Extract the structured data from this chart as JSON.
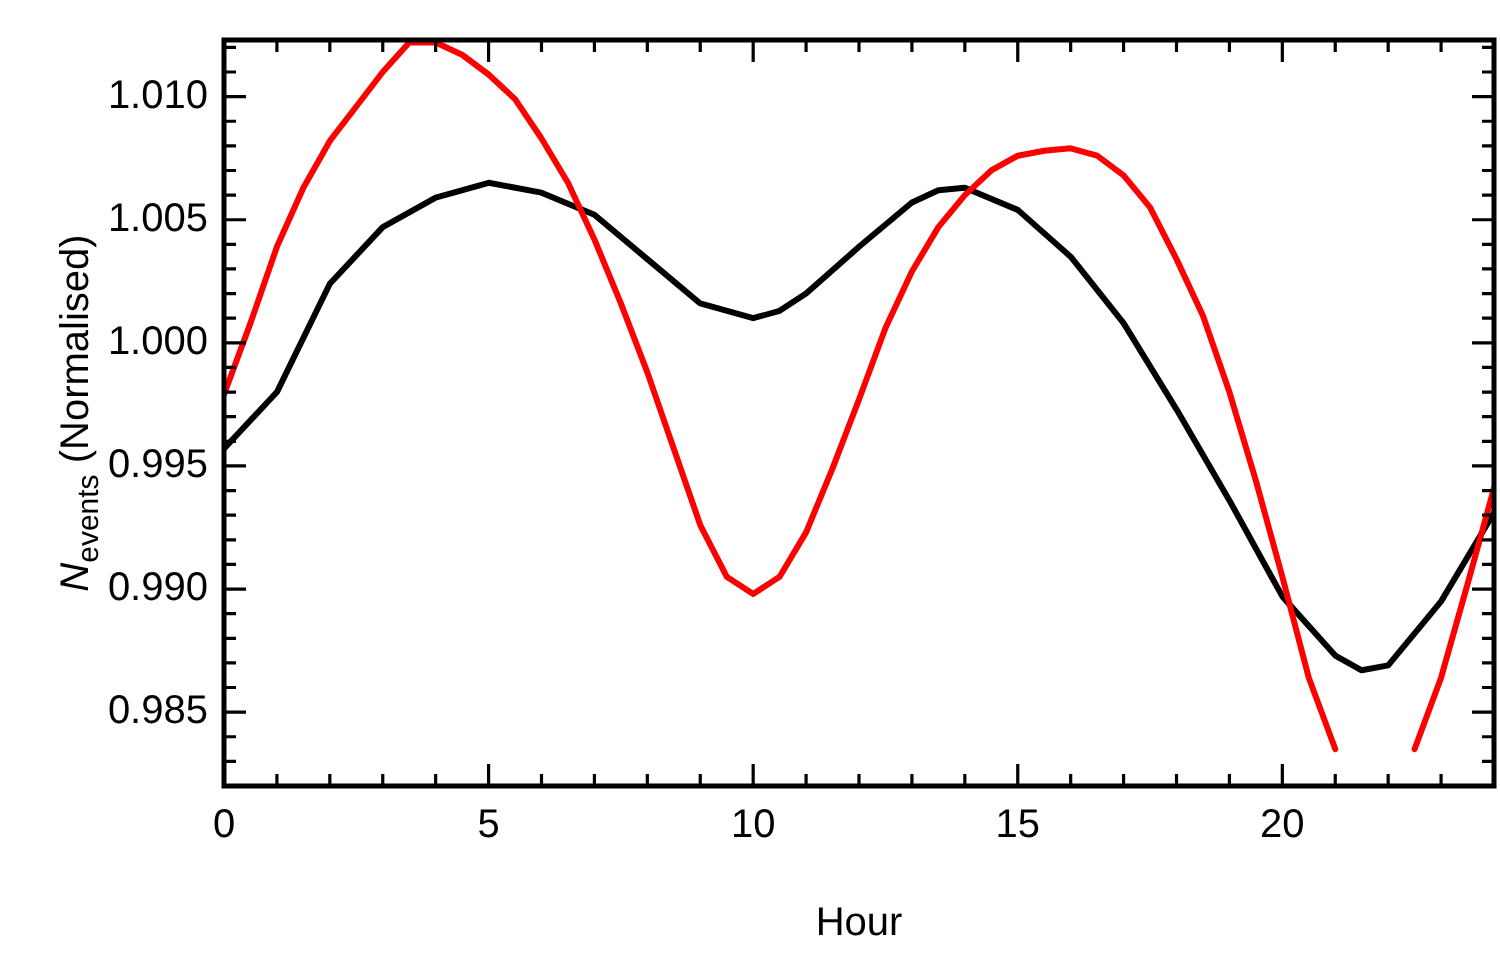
{
  "chart_data": {
    "type": "line",
    "xlabel": "Hour",
    "ylabel": "N$_{events}$ (Normalised)",
    "marker": "none",
    "line_style": "solid",
    "xlim": [
      0,
      24
    ],
    "xticks": [
      0,
      {
        "value": 1,
        "label": null
      },
      {
        "value": 2,
        "label": null
      },
      {
        "value": 3,
        "label": null
      },
      {
        "value": 4,
        "label": null
      },
      5,
      {
        "value": 6,
        "label": null
      },
      {
        "value": 7,
        "label": null
      },
      {
        "value": 8,
        "label": null
      },
      {
        "value": 9,
        "label": null
      },
      10,
      {
        "value": 11,
        "label": null
      },
      {
        "value": 12,
        "label": null
      },
      {
        "value": 13,
        "label": null
      },
      {
        "value": 14,
        "label": null
      },
      15,
      {
        "value": 16,
        "label": null
      },
      {
        "value": 17,
        "label": null
      },
      {
        "value": 18,
        "label": null
      },
      {
        "value": 19,
        "label": null
      },
      20,
      {
        "value": 21,
        "label": null
      },
      {
        "value": 22,
        "label": null
      },
      {
        "value": 23,
        "label": null
      }
    ],
    "ylim": [
      0.982,
      1.0123
    ],
    "yticks": [
      {
        "value": 0.983,
        "label": null
      },
      {
        "value": 0.984,
        "label": null
      },
      0.985,
      {
        "value": 0.986,
        "label": null
      },
      {
        "value": 0.987,
        "label": null
      },
      {
        "value": 0.988,
        "label": null
      },
      {
        "value": 0.989,
        "label": null
      },
      {
        "value": 0.99,
        "label": "0.990"
      },
      {
        "value": 0.991,
        "label": null
      },
      {
        "value": 0.992,
        "label": null
      },
      {
        "value": 0.993,
        "label": null
      },
      {
        "value": 0.994,
        "label": null
      },
      0.995,
      {
        "value": 0.996,
        "label": null
      },
      {
        "value": 0.997,
        "label": null
      },
      {
        "value": 0.998,
        "label": null
      },
      {
        "value": 0.999,
        "label": null
      },
      {
        "value": 1,
        "label": "1.000"
      },
      {
        "value": 1.001,
        "label": null
      },
      {
        "value": 1.002,
        "label": null
      },
      {
        "value": 1.003,
        "label": null
      },
      {
        "value": 1.004,
        "label": null
      },
      1.005,
      {
        "value": 1.006,
        "label": null
      },
      {
        "value": 1.007,
        "label": null
      },
      {
        "value": 1.008,
        "label": null
      },
      {
        "value": 1.009,
        "label": null
      },
      {
        "value": 1.01,
        "label": "1.010"
      },
      {
        "value": 1.011,
        "label": null
      },
      {
        "value": 1.012,
        "label": null
      }
    ],
    "series": [
      {
        "color": "#ff0000",
        "x": [
          0,
          0.5,
          1,
          1.5,
          2,
          2.5,
          3,
          3.5,
          4,
          4.5,
          5,
          5.5,
          6,
          6.5,
          7,
          7.5,
          8,
          8.5,
          9,
          9.5,
          10,
          10.5,
          11,
          11.5,
          12,
          12.5,
          13,
          13.5,
          14,
          14.5,
          15,
          15.5,
          16,
          16.5,
          17,
          17.5,
          18,
          18.5,
          19,
          19.5,
          20,
          20.5,
          21,
          21.5,
          22,
          22.5,
          23,
          23.5,
          24
        ],
        "values": [
          0.9979,
          1.0008,
          1.0039,
          1.0063,
          1.0082,
          1.0096,
          1.011,
          1.0122,
          1.0122,
          1.0117,
          1.0109,
          1.0099,
          1.0083,
          1.0065,
          1.0042,
          1.0016,
          0.9988,
          0.9957,
          0.9926,
          0.9905,
          0.9898,
          0.9905,
          0.9923,
          0.9949,
          0.9977,
          1.0006,
          1.0029,
          1.0047,
          1.006,
          1.007,
          1.0076,
          1.0078,
          1.0079,
          1.0076,
          1.0068,
          1.0055,
          1.0034,
          1.0011,
          0.998,
          0.9944,
          0.9905,
          0.9864,
          0.9835,
          null,
          null,
          0.9835,
          0.9864,
          0.9902,
          0.9941
        ]
      },
      {
        "color": "#000000",
        "x": [
          0,
          1,
          2,
          3,
          4,
          5,
          6,
          7,
          8,
          9,
          10,
          10.5,
          11,
          12,
          13,
          13.5,
          14,
          15,
          16,
          17,
          18,
          19,
          20,
          21,
          21.5,
          22,
          23,
          24
        ],
        "values": [
          0.9957,
          0.998,
          1.0024,
          1.0047,
          1.0059,
          1.0065,
          1.0061,
          1.0052,
          1.0034,
          1.0016,
          1.001,
          1.0013,
          1.002,
          1.0039,
          1.0057,
          1.0062,
          1.0063,
          1.0054,
          1.0035,
          1.0008,
          0.9973,
          0.9936,
          0.9897,
          0.9873,
          0.9867,
          0.9869,
          0.9895,
          0.9931
        ]
      }
    ]
  }
}
